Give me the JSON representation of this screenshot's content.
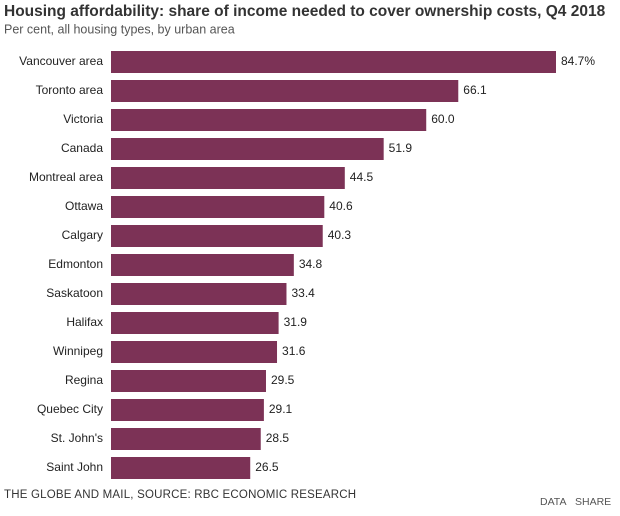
{
  "chart_data": {
    "type": "bar",
    "orientation": "horizontal",
    "title": "Housing affordability: share of income needed to cover ownership costs, Q4 2018",
    "subtitle": "Per cent, all housing types, by urban area",
    "categories": [
      "Vancouver area",
      "Toronto area",
      "Victoria",
      "Canada",
      "Montreal area",
      "Ottawa",
      "Calgary",
      "Edmonton",
      "Saskatoon",
      "Halifax",
      "Winnipeg",
      "Regina",
      "Quebec City",
      "St. John's",
      "Saint John"
    ],
    "values": [
      84.7,
      66.1,
      60.0,
      51.9,
      44.5,
      40.6,
      40.3,
      34.8,
      33.4,
      31.9,
      31.6,
      29.5,
      29.1,
      28.5,
      26.5
    ],
    "value_labels": [
      "84.7%",
      "66.1",
      "60.0",
      "51.9",
      "44.5",
      "40.6",
      "40.3",
      "34.8",
      "33.4",
      "31.9",
      "31.6",
      "29.5",
      "29.1",
      "28.5",
      "26.5"
    ],
    "color": "#7c3256",
    "source": "THE GLOBE AND MAIL, SOURCE: RBC ECONOMIC RESEARCH",
    "buttons": [
      "DATA",
      "SHARE"
    ]
  }
}
